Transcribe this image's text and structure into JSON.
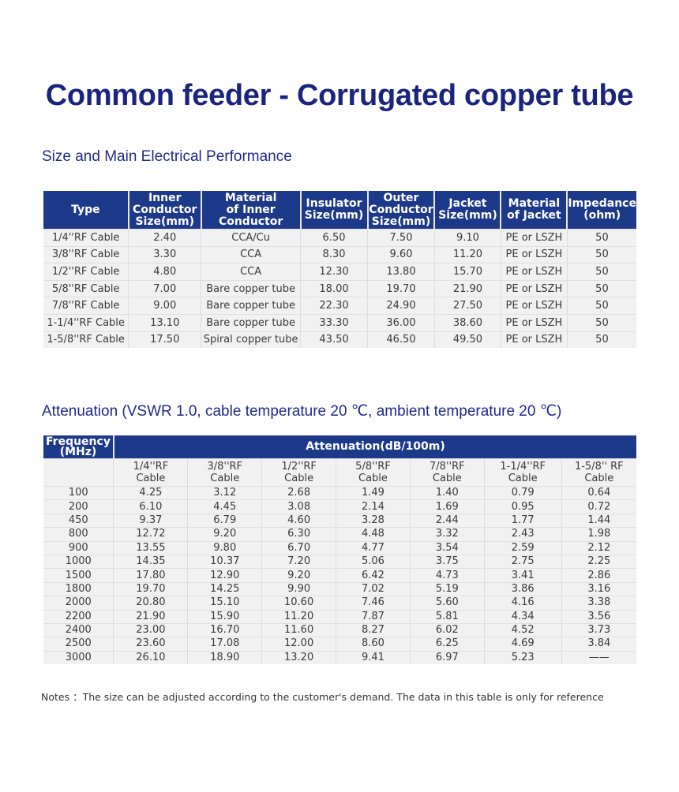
{
  "title": "Common feeder - Corrugated copper tube",
  "section1": "Size and Main Electrical Performance",
  "table1": {
    "headers": [
      [
        "Type"
      ],
      [
        "Inner",
        "Conductor",
        "Size(mm)"
      ],
      [
        "Material",
        "of Inner",
        "Conductor"
      ],
      [
        "Insulator",
        "Size(mm)"
      ],
      [
        "Outer",
        "Conductor",
        "Size(mm)"
      ],
      [
        "Jacket",
        "Size(mm)"
      ],
      [
        "Material",
        "of Jacket"
      ],
      [
        "Impedance",
        "(ohm)"
      ]
    ],
    "rows": [
      [
        "1/4''RF Cable",
        "2.40",
        "CCA/Cu",
        "6.50",
        "7.50",
        "9.10",
        "PE or LSZH",
        "50"
      ],
      [
        "3/8''RF Cable",
        "3.30",
        "CCA",
        "8.30",
        "9.60",
        "11.20",
        "PE or LSZH",
        "50"
      ],
      [
        "1/2''RF Cable",
        "4.80",
        "CCA",
        "12.30",
        "13.80",
        "15.70",
        "PE or LSZH",
        "50"
      ],
      [
        "5/8''RF Cable",
        "7.00",
        "Bare copper tube",
        "18.00",
        "19.70",
        "21.90",
        "PE or LSZH",
        "50"
      ],
      [
        "7/8''RF Cable",
        "9.00",
        "Bare copper tube",
        "22.30",
        "24.90",
        "27.50",
        "PE or LSZH",
        "50"
      ],
      [
        "1-1/4''RF Cable",
        "13.10",
        "Bare copper tube",
        "33.30",
        "36.00",
        "38.60",
        "PE or LSZH",
        "50"
      ],
      [
        "1-5/8''RF Cable",
        "17.50",
        "Spiral copper tube",
        "43.50",
        "46.50",
        "49.50",
        "PE or LSZH",
        "50"
      ]
    ]
  },
  "section2": "Attenuation (VSWR 1.0, cable temperature 20 ℃, ambient temperature 20 ℃)",
  "table2": {
    "freq_header": [
      "Frequency",
      "(MHz)"
    ],
    "att_header": "Attenuation(dB/100m)",
    "subheaders": [
      [
        "1/4''RF",
        "Cable"
      ],
      [
        "3/8''RF",
        "Cable"
      ],
      [
        "1/2''RF",
        "Cable"
      ],
      [
        "5/8''RF",
        "Cable"
      ],
      [
        "7/8''RF",
        "Cable"
      ],
      [
        "1-1/4''RF",
        "Cable"
      ],
      [
        "1-5/8'' RF",
        "Cable"
      ]
    ],
    "rows": [
      [
        "100",
        "4.25",
        "3.12",
        "2.68",
        "1.49",
        "1.40",
        "0.79",
        "0.64"
      ],
      [
        "200",
        "6.10",
        "4.45",
        "3.08",
        "2.14",
        "1.69",
        "0.95",
        "0.72"
      ],
      [
        "450",
        "9.37",
        "6.79",
        "4.60",
        "3.28",
        "2.44",
        "1.77",
        "1.44"
      ],
      [
        "800",
        "12.72",
        "9.20",
        "6.30",
        "4.48",
        "3.32",
        "2.43",
        "1.98"
      ],
      [
        "900",
        "13.55",
        "9.80",
        "6.70",
        "4.77",
        "3.54",
        "2.59",
        "2.12"
      ],
      [
        "1000",
        "14.35",
        "10.37",
        "7.20",
        "5.06",
        "3.75",
        "2.75",
        "2.25"
      ],
      [
        "1500",
        "17.80",
        "12.90",
        "9.20",
        "6.42",
        "4.73",
        "3.41",
        "2.86"
      ],
      [
        "1800",
        "19.70",
        "14.25",
        "9.90",
        "7.02",
        "5.19",
        "3.86",
        "3.16"
      ],
      [
        "2000",
        "20.80",
        "15.10",
        "10.60",
        "7.46",
        "5.60",
        "4.16",
        "3.38"
      ],
      [
        "2200",
        "21.90",
        "15.90",
        "11.20",
        "7.87",
        "5.81",
        "4.34",
        "3.56"
      ],
      [
        "2400",
        "23.00",
        "16.70",
        "11.60",
        "8.27",
        "6.02",
        "4.52",
        "3.73"
      ],
      [
        "2500",
        "23.60",
        "17.08",
        "12.00",
        "8.60",
        "6.25",
        "4.69",
        "3.84"
      ],
      [
        "3000",
        "26.10",
        "18.90",
        "13.20",
        "9.41",
        "6.97",
        "5.23",
        "——"
      ]
    ]
  },
  "note": "Notes ：The size can be adjusted according to the customer's demand. The data in this table is only for reference"
}
